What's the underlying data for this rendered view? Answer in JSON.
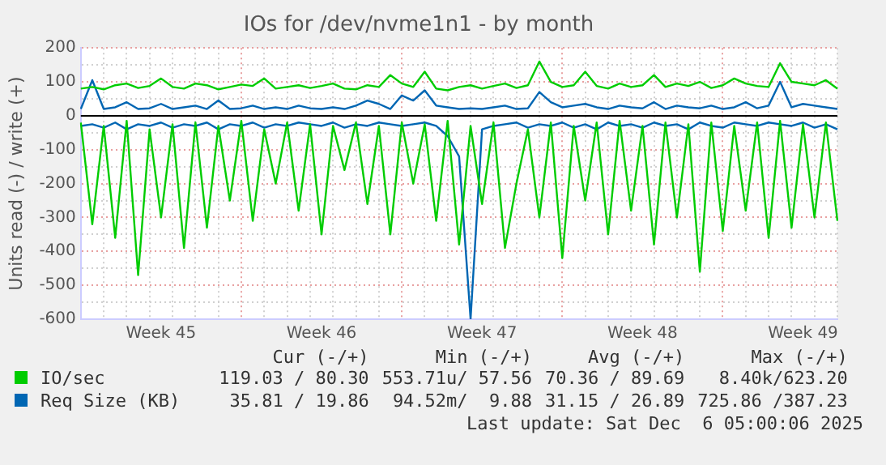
{
  "chart_data": {
    "type": "line",
    "title": "IOs for /dev/nvme1n1 - by month",
    "ylabel": "Units read (-) / write (+)",
    "categories": [
      null,
      null,
      null,
      null,
      null,
      null,
      null,
      "Week 45",
      null,
      null,
      null,
      null,
      null,
      null,
      null,
      null,
      null,
      null,
      null,
      null,
      null,
      "Week 46",
      null,
      null,
      null,
      null,
      null,
      null,
      null,
      null,
      null,
      null,
      null,
      null,
      null,
      "Week 47",
      null,
      null,
      null,
      null,
      null,
      null,
      null,
      null,
      null,
      null,
      null,
      null,
      null,
      "Week 48",
      null,
      null,
      null,
      null,
      null,
      null,
      null,
      null,
      null,
      null,
      null,
      null,
      null,
      "Week 49",
      null,
      null,
      null
    ],
    "ylim": [
      -600,
      200
    ],
    "yticks": [
      -600,
      {
        "value": -550,
        "label": null
      },
      -500,
      {
        "value": -450,
        "label": null
      },
      -400,
      {
        "value": -350,
        "label": null
      },
      -300,
      {
        "value": -250,
        "label": null
      },
      -200,
      {
        "value": -150,
        "label": null
      },
      -100,
      {
        "value": -50,
        "label": null
      },
      0,
      {
        "value": 50,
        "label": null
      },
      100,
      {
        "value": 150,
        "label": null
      },
      200
    ],
    "ref_lines": [
      {
        "axis": "y",
        "value": 0,
        "color": "#000000"
      }
    ],
    "grid": true,
    "legend": "bottom",
    "marker": "none",
    "line_style": "solid",
    "series": [
      {
        "name": "IO/sec",
        "color": "#00cc00",
        "values": [
          80,
          85,
          78,
          90,
          95,
          82,
          88,
          110,
          85,
          80,
          95,
          90,
          78,
          85,
          92,
          88,
          110,
          80,
          85,
          90,
          82,
          88,
          95,
          80,
          78,
          90,
          85,
          120,
          95,
          85,
          130,
          80,
          75,
          85,
          90,
          80,
          88,
          95,
          82,
          90,
          160,
          100,
          85,
          90,
          130,
          88,
          80,
          95,
          85,
          90,
          120,
          85,
          95,
          88,
          100,
          82,
          90,
          110,
          95,
          88,
          85,
          155,
          100,
          95,
          90,
          105,
          80
        ]
      },
      {
        "color": "#00cc00",
        "values": [
          -20,
          -320,
          -30,
          -360,
          -15,
          -470,
          -40,
          -300,
          -25,
          -390,
          -20,
          -330,
          -30,
          -250,
          -15,
          -310,
          -40,
          -200,
          -20,
          -280,
          -25,
          -350,
          -30,
          -160,
          -20,
          -260,
          -30,
          -350,
          -20,
          -200,
          -25,
          -310,
          -15,
          -380,
          -30,
          -260,
          -20,
          -390,
          -200,
          -40,
          -300,
          -20,
          -420,
          -30,
          -250,
          -20,
          -350,
          -15,
          -280,
          -30,
          -380,
          -20,
          -300,
          -25,
          -460,
          -20,
          -340,
          -30,
          -280,
          -20,
          -360,
          -15,
          -330,
          -25,
          -300,
          -20,
          -310
        ]
      },
      {
        "name": "Req Size (KB)",
        "color": "#0066b3",
        "values": [
          20,
          105,
          20,
          25,
          40,
          20,
          22,
          35,
          20,
          25,
          30,
          20,
          45,
          20,
          22,
          30,
          20,
          25,
          20,
          30,
          22,
          20,
          25,
          20,
          30,
          45,
          35,
          20,
          60,
          45,
          75,
          30,
          25,
          20,
          22,
          20,
          25,
          30,
          20,
          22,
          70,
          40,
          25,
          30,
          35,
          25,
          20,
          30,
          25,
          22,
          40,
          20,
          30,
          25,
          22,
          30,
          20,
          25,
          40,
          22,
          30,
          100,
          25,
          35,
          30,
          25,
          20
        ]
      },
      {
        "color": "#0066b3",
        "values": [
          -30,
          -25,
          -35,
          -20,
          -40,
          -25,
          -30,
          -20,
          -35,
          -25,
          -30,
          -20,
          -40,
          -25,
          -30,
          -20,
          -35,
          -25,
          -30,
          -20,
          -25,
          -30,
          -20,
          -35,
          -25,
          -30,
          -20,
          -25,
          -30,
          -25,
          -20,
          -30,
          -60,
          -120,
          -600,
          -40,
          -30,
          -25,
          -20,
          -35,
          -25,
          -30,
          -20,
          -35,
          -25,
          -40,
          -20,
          -30,
          -25,
          -35,
          -20,
          -30,
          -25,
          -40,
          -20,
          -30,
          -35,
          -20,
          -25,
          -30,
          -20,
          -25,
          -30,
          -20,
          -35,
          -25,
          -40
        ]
      }
    ],
    "annotations": [
      "Cur (-/+)",
      "Min (-/+)",
      "Avg (-/+)",
      "Max (-/+)",
      "119.03 / 80.30",
      "553.71u/ 57.56",
      "70.36 / 89.69",
      "8.40k/623.20",
      "35.81 / 19.86",
      "94.52m/  9.88",
      "31.15 / 26.89",
      "725.86 /387.23",
      "Last update: Sat Dec  6 05:00:06 2025"
    ]
  }
}
